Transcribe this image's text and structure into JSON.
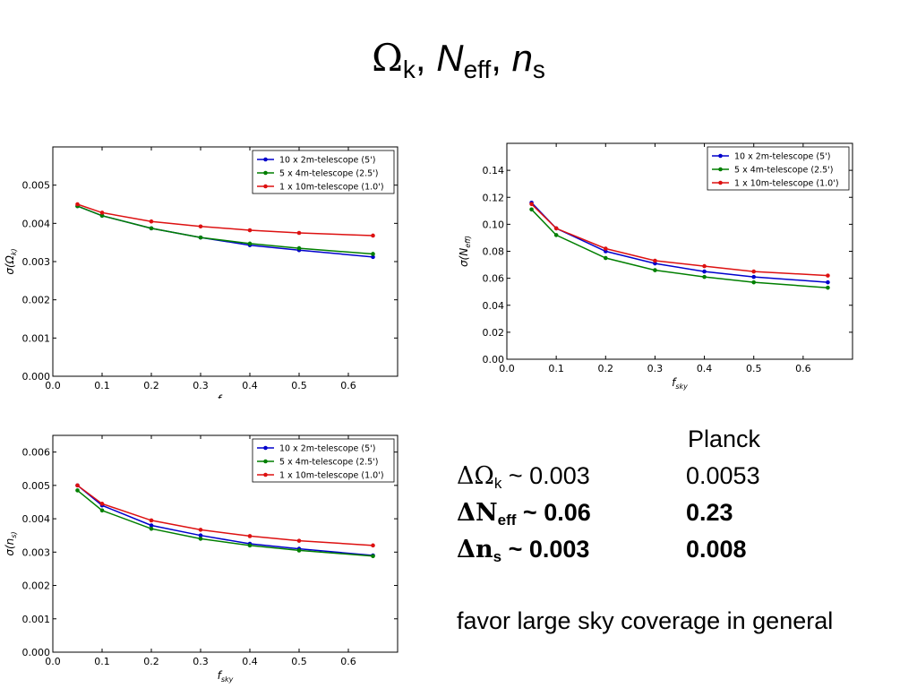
{
  "title": {
    "omega_symbol": "Ω",
    "omega_sub": "k",
    "sep1": ", ",
    "n_symbol": "N",
    "n_sub": "eff",
    "sep2": ", ",
    "ns_symbol": "n",
    "ns_sub": "s"
  },
  "summary": {
    "header": "Planck",
    "rows": [
      {
        "symbol": "ΔΩ",
        "sub": "k",
        "value": " ~ 0.003",
        "planck": "0.0053",
        "bold": false
      },
      {
        "symbol": "ΔN",
        "sub": "eff",
        "value": " ~ 0.06",
        "planck": "0.23",
        "bold": true
      },
      {
        "symbol": "Δn",
        "sub": "s",
        "value": " ~ 0.003",
        "planck": "0.008",
        "bold": true
      }
    ],
    "note": "favor large sky coverage in general"
  },
  "colors": {
    "blue": "#0000cc",
    "green": "#007f00",
    "red": "#dd1111"
  },
  "chart_data": [
    {
      "type": "line",
      "xlabel": "f_sky",
      "ylabel": "σ(Ω_k)",
      "xlim": [
        0.0,
        0.7
      ],
      "ylim": [
        0.0,
        0.006
      ],
      "xticks": [
        0.0,
        0.1,
        0.2,
        0.3,
        0.4,
        0.5,
        0.6
      ],
      "yticks": [
        0.0,
        0.001,
        0.002,
        0.003,
        0.004,
        0.005
      ],
      "ytick_decimals": 3,
      "legend": "top-right",
      "x": [
        0.05,
        0.1,
        0.2,
        0.3,
        0.4,
        0.5,
        0.65
      ],
      "series": [
        {
          "name": "10 x 2m-telescope (5')",
          "color": "#0000cc",
          "values": [
            0.00445,
            0.0042,
            0.00387,
            0.00363,
            0.00343,
            0.0033,
            0.00312
          ]
        },
        {
          "name": "5 x 4m-telescope (2.5')",
          "color": "#007f00",
          "values": [
            0.00445,
            0.0042,
            0.00387,
            0.00363,
            0.00347,
            0.00335,
            0.0032
          ]
        },
        {
          "name": "1 x 10m-telescope (1.0')",
          "color": "#dd1111",
          "values": [
            0.0045,
            0.00428,
            0.00405,
            0.00392,
            0.00382,
            0.00375,
            0.00368
          ]
        }
      ]
    },
    {
      "type": "line",
      "xlabel": "f_sky",
      "ylabel": "σ(N_eff)",
      "xlim": [
        0.0,
        0.7
      ],
      "ylim": [
        0.0,
        0.16
      ],
      "xticks": [
        0.0,
        0.1,
        0.2,
        0.3,
        0.4,
        0.5,
        0.6
      ],
      "yticks": [
        0.0,
        0.02,
        0.04,
        0.06,
        0.08,
        0.1,
        0.12,
        0.14
      ],
      "ytick_decimals": 2,
      "legend": "top-right",
      "x": [
        0.05,
        0.1,
        0.2,
        0.3,
        0.4,
        0.5,
        0.65
      ],
      "series": [
        {
          "name": "10 x 2m-telescope (5')",
          "color": "#0000cc",
          "values": [
            0.116,
            0.097,
            0.08,
            0.071,
            0.065,
            0.061,
            0.057
          ]
        },
        {
          "name": "5 x 4m-telescope (2.5')",
          "color": "#007f00",
          "values": [
            0.111,
            0.092,
            0.075,
            0.066,
            0.061,
            0.057,
            0.053
          ]
        },
        {
          "name": "1 x 10m-telescope (1.0')",
          "color": "#dd1111",
          "values": [
            0.115,
            0.097,
            0.082,
            0.073,
            0.069,
            0.065,
            0.062
          ]
        }
      ]
    },
    {
      "type": "line",
      "xlabel": "f_sky",
      "ylabel": "σ(n_s)",
      "xlim": [
        0.0,
        0.7
      ],
      "ylim": [
        0.0,
        0.0065
      ],
      "xticks": [
        0.0,
        0.1,
        0.2,
        0.3,
        0.4,
        0.5,
        0.6
      ],
      "yticks": [
        0.0,
        0.001,
        0.002,
        0.003,
        0.004,
        0.005,
        0.006
      ],
      "ytick_decimals": 3,
      "legend": "top-right",
      "x": [
        0.05,
        0.1,
        0.2,
        0.3,
        0.4,
        0.5,
        0.65
      ],
      "series": [
        {
          "name": "10 x 2m-telescope (5')",
          "color": "#0000cc",
          "values": [
            0.005,
            0.0044,
            0.0038,
            0.0035,
            0.00325,
            0.0031,
            0.0029
          ]
        },
        {
          "name": "5 x 4m-telescope (2.5')",
          "color": "#007f00",
          "values": [
            0.00485,
            0.00425,
            0.0037,
            0.0034,
            0.0032,
            0.00305,
            0.00288
          ]
        },
        {
          "name": "1 x 10m-telescope (1.0')",
          "color": "#dd1111",
          "values": [
            0.005,
            0.00445,
            0.00395,
            0.00367,
            0.00348,
            0.00334,
            0.0032
          ]
        }
      ]
    }
  ]
}
